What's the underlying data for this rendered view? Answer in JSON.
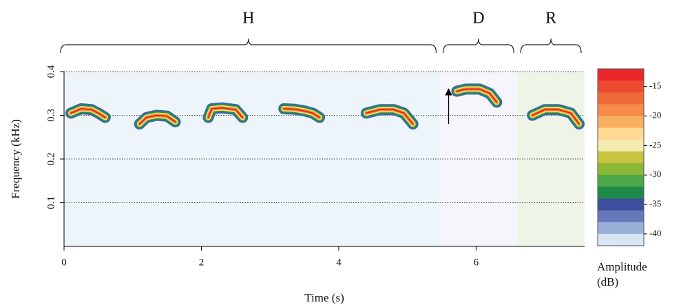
{
  "chart_data": {
    "type": "spectrogram",
    "xlabel": "Time (s)",
    "ylabel": "Frequency (kHz)",
    "xlim": [
      0,
      7.58
    ],
    "ylim": [
      0,
      0.4
    ],
    "xticks": [
      0,
      2,
      4,
      6
    ],
    "yticks": [
      0.1,
      0.2,
      0.3,
      0.4
    ],
    "grid": true,
    "regions": [
      {
        "label": "H",
        "start": 0,
        "end": 5.47,
        "color": "#eef5fa"
      },
      {
        "label": "D",
        "start": 5.47,
        "end": 6.6,
        "color": "#f6f5fc"
      },
      {
        "label": "R",
        "start": 6.6,
        "end": 7.58,
        "color": "#eef4e6"
      }
    ],
    "calls": [
      {
        "x": [
          0.1,
          0.25,
          0.4,
          0.5,
          0.6
        ],
        "y": [
          0.305,
          0.315,
          0.313,
          0.305,
          0.295
        ]
      },
      {
        "x": [
          1.1,
          1.2,
          1.35,
          1.5,
          1.62
        ],
        "y": [
          0.28,
          0.295,
          0.3,
          0.298,
          0.285
        ]
      },
      {
        "x": [
          2.1,
          2.15,
          2.3,
          2.5,
          2.6
        ],
        "y": [
          0.295,
          0.315,
          0.317,
          0.313,
          0.295
        ]
      },
      {
        "x": [
          3.2,
          3.35,
          3.5,
          3.62,
          3.72
        ],
        "y": [
          0.315,
          0.314,
          0.31,
          0.305,
          0.295
        ]
      },
      {
        "x": [
          4.4,
          4.6,
          4.8,
          4.95,
          5.08
        ],
        "y": [
          0.305,
          0.313,
          0.313,
          0.305,
          0.28
        ]
      },
      {
        "x": [
          5.72,
          5.85,
          6.05,
          6.2,
          6.3
        ],
        "y": [
          0.355,
          0.36,
          0.36,
          0.35,
          0.33
        ]
      },
      {
        "x": [
          6.82,
          7.0,
          7.2,
          7.38,
          7.5
        ],
        "y": [
          0.3,
          0.313,
          0.313,
          0.305,
          0.28
        ]
      }
    ],
    "arrow": {
      "x": 5.6,
      "y": [
        0.28,
        0.36
      ]
    },
    "colorbar": {
      "label": "Amplitude (dB)",
      "lim": [
        -42,
        -12
      ],
      "ticks": [
        -15,
        -20,
        -25,
        -30,
        -35,
        -40
      ],
      "colors": [
        "#e8282a",
        "#ec4a30",
        "#f06a38",
        "#f48c48",
        "#f8b060",
        "#fdd890",
        "#f4ecb0",
        "#c8c440",
        "#8cb838",
        "#4ca848",
        "#1e8a48",
        "#3f4fa0",
        "#6678bb",
        "#9bb0d8",
        "#d8e6f4"
      ]
    }
  }
}
